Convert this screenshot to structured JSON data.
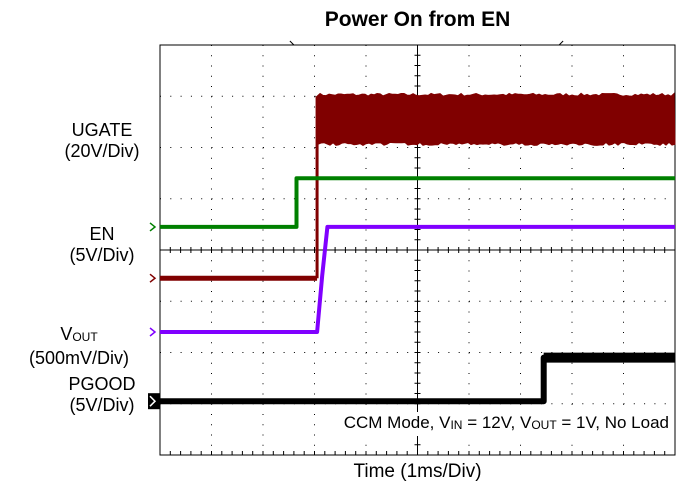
{
  "title": "Power On from EN",
  "xlabel": "Time (1ms/Div)",
  "annotation": {
    "prefix": "CCM Mode, V",
    "vin_sub": "IN",
    "vin_rest": " = 12V, V",
    "vout_sub": "OUT",
    "vout_rest": " = 1V, No Load"
  },
  "channels": [
    {
      "key": "ugate",
      "name": "UGATE",
      "scale": "(20V/Div)",
      "color": "#800000"
    },
    {
      "key": "en",
      "name": "EN",
      "scale": "(5V/Div)",
      "color": "#008000"
    },
    {
      "key": "vout",
      "name_prefix": "V",
      "name_sub": "OUT",
      "scale": "(500mV/Div)",
      "color": "#8000ff"
    },
    {
      "key": "pgood",
      "name": "PGOOD",
      "scale": "(5V/Div)",
      "color": "#000000"
    }
  ],
  "chart_data": {
    "type": "line",
    "title": "Power On from EN",
    "xlabel": "Time (1ms/Div)",
    "ylabel": "",
    "grid": true,
    "x_divisions": 10,
    "y_divisions": 8,
    "series": [
      {
        "name": "UGATE",
        "scale": "20V/Div",
        "color": "#800000",
        "switching_band_div": [
          1.0,
          1.9
        ],
        "x": [
          0,
          3.05,
          3.05,
          10
        ],
        "y": [
          4.55,
          4.55,
          1.0,
          1.0
        ]
      },
      {
        "name": "EN",
        "scale": "5V/Div",
        "color": "#008000",
        "x": [
          0,
          2.65,
          2.65,
          10
        ],
        "y": [
          3.55,
          3.55,
          2.6,
          2.6
        ]
      },
      {
        "name": "VOUT",
        "scale": "500mV/Div",
        "color": "#8000ff",
        "x": [
          0,
          3.05,
          3.15,
          3.25,
          10
        ],
        "y": [
          5.6,
          5.6,
          4.5,
          3.55,
          3.55
        ]
      },
      {
        "name": "PGOOD",
        "scale": "5V/Div",
        "color": "#000000",
        "x": [
          0,
          7.45,
          7.45,
          10
        ],
        "y": [
          6.95,
          6.95,
          6.1,
          6.1
        ]
      }
    ]
  }
}
